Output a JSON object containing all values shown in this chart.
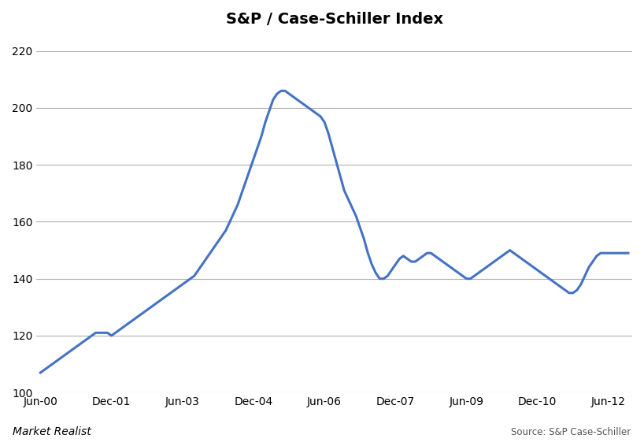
{
  "title": "S&P / Case-Schiller Index",
  "ylim": [
    100,
    225
  ],
  "yticks": [
    100,
    120,
    140,
    160,
    180,
    200,
    220
  ],
  "line_color": "#4472C4",
  "line_width": 2.2,
  "bg_color": "#ffffff",
  "grid_color": "#b0b0b0",
  "watermark": "Market Realist",
  "source_text": "Source: S&P Case-Schiller",
  "xtick_labels": [
    "Jun-00",
    "Dec-01",
    "Jun-03",
    "Dec-04",
    "Jun-06",
    "Dec-07",
    "Jun-09",
    "Dec-10",
    "Jun-12"
  ],
  "xtick_positions": [
    0,
    18,
    36,
    54,
    72,
    90,
    108,
    126,
    144
  ],
  "x_values": [
    0,
    1,
    2,
    3,
    4,
    5,
    6,
    7,
    8,
    9,
    10,
    11,
    12,
    13,
    14,
    15,
    16,
    17,
    18,
    19,
    20,
    21,
    22,
    23,
    24,
    25,
    26,
    27,
    28,
    29,
    30,
    31,
    32,
    33,
    34,
    35,
    36,
    37,
    38,
    39,
    40,
    41,
    42,
    43,
    44,
    45,
    46,
    47,
    48,
    49,
    50,
    51,
    52,
    53,
    54,
    55,
    56,
    57,
    58,
    59,
    60,
    61,
    62,
    63,
    64,
    65,
    66,
    67,
    68,
    69,
    70,
    71,
    72,
    73,
    74,
    75,
    76,
    77,
    78,
    79,
    80,
    81,
    82,
    83,
    84,
    85,
    86,
    87,
    88,
    89,
    90,
    91,
    92,
    93,
    94,
    95,
    96,
    97,
    98,
    99,
    100,
    101,
    102,
    103,
    104,
    105,
    106,
    107,
    108,
    109,
    110,
    111,
    112,
    113,
    114,
    115,
    116,
    117,
    118,
    119,
    120,
    121,
    122,
    123,
    124,
    125,
    126,
    127,
    128,
    129,
    130,
    131,
    132,
    133,
    134,
    135,
    136,
    137,
    138,
    139,
    140,
    141,
    142,
    143,
    144,
    145,
    146,
    147,
    148,
    149
  ],
  "y_values": [
    107,
    108,
    109,
    110,
    111,
    112,
    113,
    114,
    115,
    116,
    117,
    118,
    119,
    120,
    121,
    121,
    121,
    121,
    120,
    121,
    122,
    123,
    124,
    125,
    126,
    127,
    128,
    129,
    130,
    131,
    132,
    133,
    134,
    135,
    136,
    137,
    138,
    139,
    140,
    141,
    143,
    145,
    147,
    149,
    151,
    153,
    155,
    157,
    160,
    163,
    166,
    170,
    174,
    178,
    182,
    186,
    190,
    195,
    199,
    203,
    205,
    206,
    206,
    205,
    204,
    203,
    202,
    201,
    200,
    199,
    198,
    197,
    195,
    191,
    186,
    181,
    176,
    171,
    168,
    165,
    162,
    158,
    154,
    149,
    145,
    142,
    140,
    140,
    141,
    143,
    145,
    147,
    148,
    147,
    146,
    146,
    147,
    148,
    149,
    149,
    148,
    147,
    146,
    145,
    144,
    143,
    142,
    141,
    140,
    140,
    141,
    142,
    143,
    144,
    145,
    146,
    147,
    148,
    149,
    150,
    149,
    148,
    147,
    146,
    145,
    144,
    143,
    142,
    141,
    140,
    139,
    138,
    137,
    136,
    135,
    135,
    136,
    138,
    141,
    144,
    146,
    148,
    149,
    149,
    149,
    149,
    149,
    149,
    149,
    149
  ]
}
